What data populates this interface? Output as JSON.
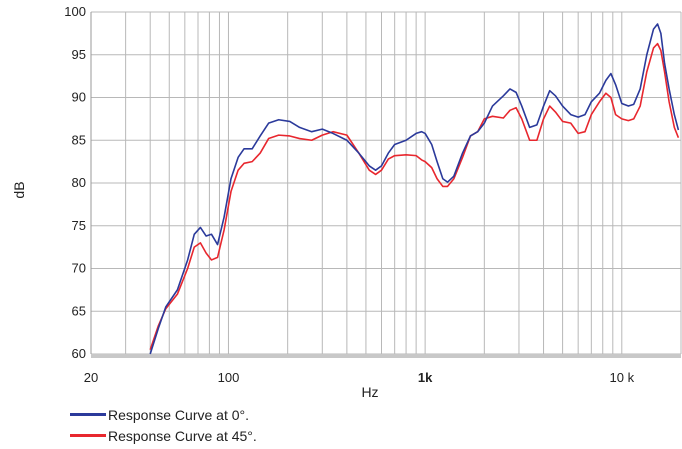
{
  "chart_data": {
    "type": "line",
    "xscale": "log",
    "xlim": [
      20,
      20000
    ],
    "ylim": [
      60,
      100
    ],
    "xlabel": "Hz",
    "ylabel": "dB",
    "xticks": [
      {
        "value": 20,
        "label": "20",
        "bold": false
      },
      {
        "value": 100,
        "label": "100",
        "bold": false
      },
      {
        "value": 1000,
        "label": "1k",
        "bold": true
      },
      {
        "value": 10000,
        "label": "10 k",
        "bold": false
      }
    ],
    "yticks": [
      {
        "value": 60,
        "label": "60"
      },
      {
        "value": 65,
        "label": "65"
      },
      {
        "value": 70,
        "label": "70"
      },
      {
        "value": 75,
        "label": "75"
      },
      {
        "value": 80,
        "label": "80"
      },
      {
        "value": 85,
        "label": "85"
      },
      {
        "value": 90,
        "label": "90"
      },
      {
        "value": 95,
        "label": "95"
      },
      {
        "value": 100,
        "label": "100"
      }
    ],
    "grid": true,
    "legend_position": "bottom-left",
    "series": [
      {
        "name": "Response Curve at 0°.",
        "color": "#2b3a9b",
        "points": [
          [
            40,
            60
          ],
          [
            44,
            63
          ],
          [
            48,
            65.5
          ],
          [
            55,
            67.5
          ],
          [
            62,
            71
          ],
          [
            67,
            74
          ],
          [
            72,
            74.8
          ],
          [
            77,
            73.8
          ],
          [
            82,
            74
          ],
          [
            88,
            72.8
          ],
          [
            95,
            76
          ],
          [
            103,
            80.5
          ],
          [
            112,
            83
          ],
          [
            120,
            84
          ],
          [
            132,
            84
          ],
          [
            145,
            85.5
          ],
          [
            160,
            87
          ],
          [
            180,
            87.4
          ],
          [
            205,
            87.2
          ],
          [
            230,
            86.5
          ],
          [
            265,
            86
          ],
          [
            300,
            86.3
          ],
          [
            340,
            85.8
          ],
          [
            400,
            85
          ],
          [
            460,
            83.5
          ],
          [
            520,
            82
          ],
          [
            560,
            81.5
          ],
          [
            600,
            82
          ],
          [
            650,
            83.5
          ],
          [
            700,
            84.5
          ],
          [
            800,
            85
          ],
          [
            900,
            85.8
          ],
          [
            960,
            86
          ],
          [
            1000,
            85.8
          ],
          [
            1080,
            84.5
          ],
          [
            1150,
            82.5
          ],
          [
            1230,
            80.5
          ],
          [
            1300,
            80.1
          ],
          [
            1400,
            80.8
          ],
          [
            1550,
            83.5
          ],
          [
            1700,
            85.5
          ],
          [
            1850,
            86
          ],
          [
            2000,
            87
          ],
          [
            2200,
            89
          ],
          [
            2500,
            90.2
          ],
          [
            2700,
            91
          ],
          [
            2900,
            90.6
          ],
          [
            3100,
            89
          ],
          [
            3400,
            86.5
          ],
          [
            3700,
            86.8
          ],
          [
            4000,
            89
          ],
          [
            4300,
            90.8
          ],
          [
            4600,
            90.2
          ],
          [
            5000,
            89
          ],
          [
            5500,
            88
          ],
          [
            6000,
            87.7
          ],
          [
            6500,
            88
          ],
          [
            7000,
            89.5
          ],
          [
            7700,
            90.5
          ],
          [
            8300,
            92
          ],
          [
            8800,
            92.8
          ],
          [
            9300,
            91.5
          ],
          [
            10000,
            89.3
          ],
          [
            10800,
            89
          ],
          [
            11500,
            89.2
          ],
          [
            12400,
            91
          ],
          [
            13400,
            95
          ],
          [
            14500,
            98
          ],
          [
            15200,
            98.6
          ],
          [
            15800,
            97.5
          ],
          [
            16500,
            94
          ],
          [
            17400,
            91
          ],
          [
            18500,
            88
          ],
          [
            19400,
            86.2
          ]
        ]
      },
      {
        "name": "Response Curve at 45°.",
        "color": "#e8272e",
        "points": [
          [
            40,
            60.5
          ],
          [
            44,
            63.3
          ],
          [
            48,
            65.3
          ],
          [
            55,
            67
          ],
          [
            62,
            70
          ],
          [
            67,
            72.5
          ],
          [
            72,
            73
          ],
          [
            77,
            71.8
          ],
          [
            82,
            71
          ],
          [
            88,
            71.3
          ],
          [
            95,
            74.5
          ],
          [
            103,
            79
          ],
          [
            112,
            81.5
          ],
          [
            120,
            82.3
          ],
          [
            132,
            82.5
          ],
          [
            145,
            83.5
          ],
          [
            160,
            85.2
          ],
          [
            180,
            85.6
          ],
          [
            205,
            85.5
          ],
          [
            230,
            85.2
          ],
          [
            265,
            85
          ],
          [
            300,
            85.6
          ],
          [
            340,
            86
          ],
          [
            400,
            85.6
          ],
          [
            460,
            83.5
          ],
          [
            520,
            81.5
          ],
          [
            560,
            81
          ],
          [
            600,
            81.5
          ],
          [
            650,
            82.8
          ],
          [
            700,
            83.2
          ],
          [
            800,
            83.3
          ],
          [
            900,
            83.2
          ],
          [
            960,
            82.7
          ],
          [
            1000,
            82.5
          ],
          [
            1080,
            81.8
          ],
          [
            1150,
            80.5
          ],
          [
            1230,
            79.6
          ],
          [
            1300,
            79.6
          ],
          [
            1400,
            80.5
          ],
          [
            1550,
            83
          ],
          [
            1700,
            85.5
          ],
          [
            1850,
            86
          ],
          [
            2000,
            87.5
          ],
          [
            2200,
            87.8
          ],
          [
            2500,
            87.6
          ],
          [
            2700,
            88.5
          ],
          [
            2900,
            88.8
          ],
          [
            3100,
            87.5
          ],
          [
            3400,
            85
          ],
          [
            3700,
            85
          ],
          [
            4000,
            87.5
          ],
          [
            4300,
            89
          ],
          [
            4600,
            88.3
          ],
          [
            5000,
            87.2
          ],
          [
            5500,
            87
          ],
          [
            6000,
            85.8
          ],
          [
            6500,
            86
          ],
          [
            7000,
            88
          ],
          [
            7700,
            89.5
          ],
          [
            8300,
            90.5
          ],
          [
            8800,
            90
          ],
          [
            9300,
            88
          ],
          [
            10000,
            87.5
          ],
          [
            10800,
            87.3
          ],
          [
            11500,
            87.5
          ],
          [
            12400,
            89
          ],
          [
            13400,
            93
          ],
          [
            14500,
            95.8
          ],
          [
            15200,
            96.3
          ],
          [
            15800,
            95.5
          ],
          [
            16500,
            93
          ],
          [
            17400,
            89.5
          ],
          [
            18500,
            86.5
          ],
          [
            19400,
            85.3
          ]
        ]
      }
    ]
  }
}
